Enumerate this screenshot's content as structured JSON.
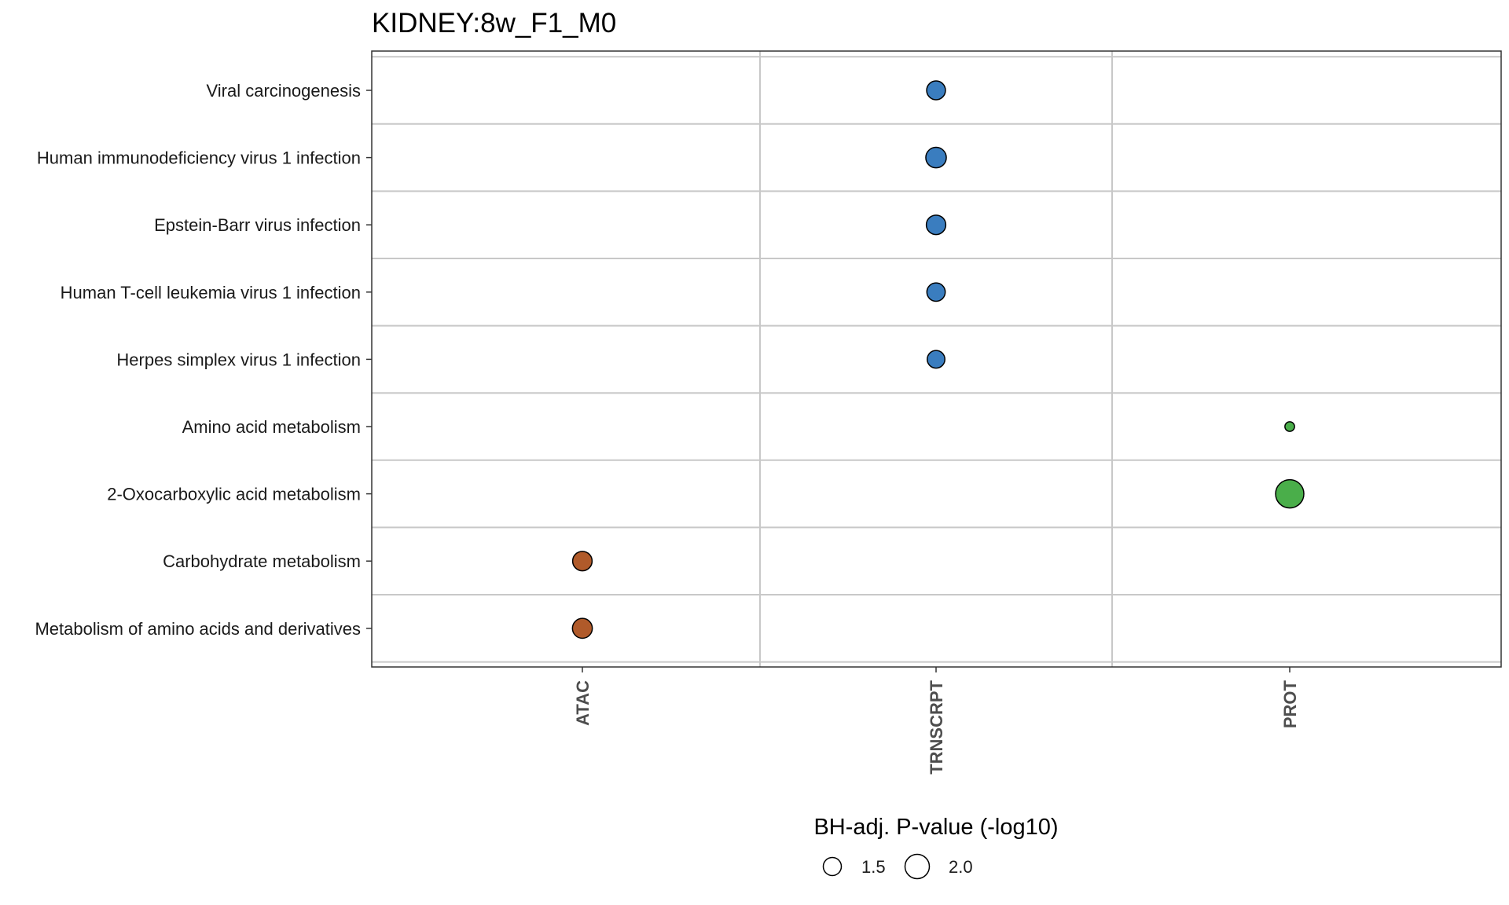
{
  "chart_data": {
    "type": "scatter",
    "title": "KIDNEY:8w_F1_M0",
    "x_categories": [
      "ATAC",
      "TRNSCRPT",
      "PROT"
    ],
    "y_categories": [
      "Viral carcinogenesis",
      "Human immunodeficiency virus 1 infection",
      "Epstein-Barr virus infection",
      "Human T-cell leukemia virus 1 infection",
      "Herpes simplex virus 1 infection",
      "Amino acid metabolism",
      "2-Oxocarboxylic acid metabolism",
      "Carbohydrate metabolism",
      "Metabolism of amino acids and derivatives"
    ],
    "points": [
      {
        "x": "TRNSCRPT",
        "y": "Viral carcinogenesis",
        "size_value": 1.62,
        "color": "#3a7dbf"
      },
      {
        "x": "TRNSCRPT",
        "y": "Human immunodeficiency virus 1 infection",
        "size_value": 1.7,
        "color": "#3a7dbf"
      },
      {
        "x": "TRNSCRPT",
        "y": "Epstein-Barr virus infection",
        "size_value": 1.65,
        "color": "#3a7dbf"
      },
      {
        "x": "TRNSCRPT",
        "y": "Human T-cell leukemia virus 1 infection",
        "size_value": 1.6,
        "color": "#3a7dbf"
      },
      {
        "x": "TRNSCRPT",
        "y": "Herpes simplex virus 1 infection",
        "size_value": 1.57,
        "color": "#3a7dbf"
      },
      {
        "x": "PROT",
        "y": "Amino acid metabolism",
        "size_value": 1.31,
        "color": "#4aae4a"
      },
      {
        "x": "PROT",
        "y": "2-Oxocarboxylic acid metabolism",
        "size_value": 2.15,
        "color": "#4aae4a"
      },
      {
        "x": "ATAC",
        "y": "Carbohydrate metabolism",
        "size_value": 1.65,
        "color": "#b05a2a"
      },
      {
        "x": "ATAC",
        "y": "Metabolism of amino acids and derivatives",
        "size_value": 1.67,
        "color": "#b05a2a"
      }
    ],
    "legend": {
      "title": "BH-adj. P-value (-log10)",
      "entries": [
        {
          "label": "1.5",
          "value": 1.5
        },
        {
          "label": "2.0",
          "value": 2.0
        }
      ],
      "position": "bottom"
    },
    "grid": true
  }
}
